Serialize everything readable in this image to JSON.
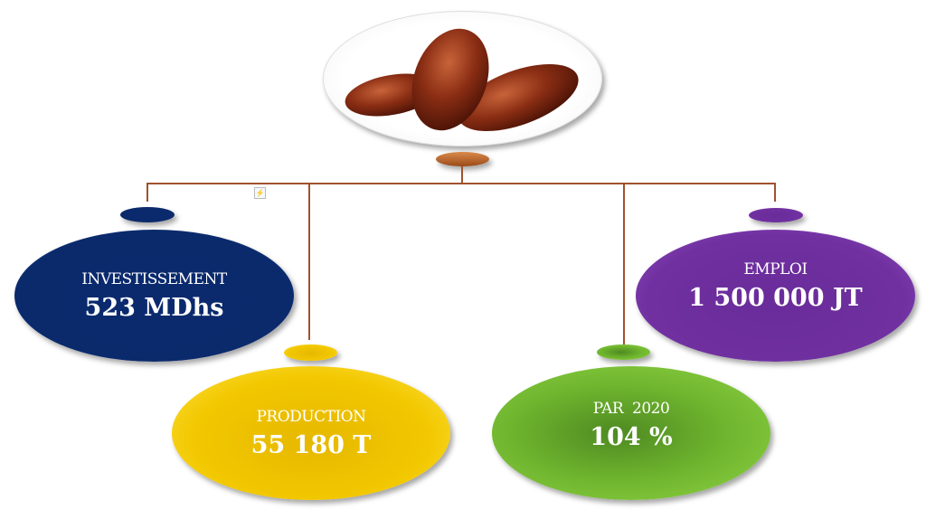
{
  "nodes": {
    "investissement": {
      "label": "INVESTISSEMENT",
      "value": "523 MDhs",
      "color": "#0a2a6c"
    },
    "production": {
      "label": "PRODUCTION",
      "value": "55 180 T",
      "color": "#f2c800"
    },
    "par": {
      "label": "PAR  2020",
      "value": "104 %",
      "color": "#6fb52e"
    },
    "emploi": {
      "label": "EMPLOI",
      "value": "1 500 000 JT",
      "color": "#7030a0"
    }
  },
  "root": {
    "image": "dates-fruit",
    "connector_color": "#a0522d"
  }
}
